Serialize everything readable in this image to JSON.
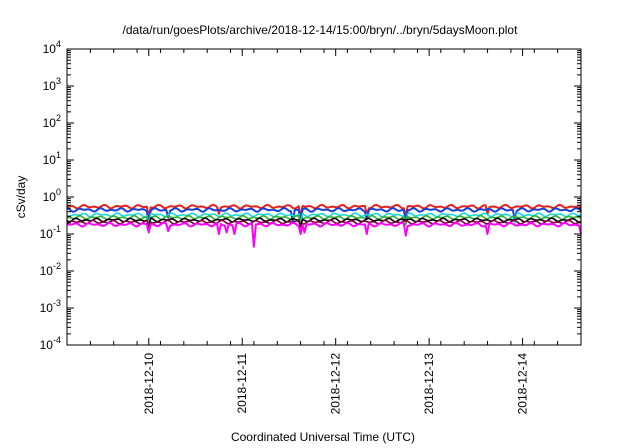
{
  "chart_data": {
    "type": "line",
    "title": "/data/run/goesPlots/archive/2018-12-14/15:00/bryn/../bryn/5daysMoon.plot",
    "xlabel": "Coordinated Universal Time (UTC)",
    "ylabel": "cSv/day",
    "yscale": "log",
    "ylim": [
      0.0001,
      10000
    ],
    "xlim": [
      "2018-12-09T03:00",
      "2018-12-14T15:00"
    ],
    "y_ticks": [
      {
        "base": "10",
        "exp": "4"
      },
      {
        "base": "10",
        "exp": "3"
      },
      {
        "base": "10",
        "exp": "2"
      },
      {
        "base": "10",
        "exp": "1"
      },
      {
        "base": "10",
        "exp": "0"
      },
      {
        "base": "10",
        "exp": "-1"
      },
      {
        "base": "10",
        "exp": "-2"
      },
      {
        "base": "10",
        "exp": "-3"
      },
      {
        "base": "10",
        "exp": "-4"
      }
    ],
    "x_ticks": [
      "2018-12-10",
      "2018-12-11",
      "2018-12-12",
      "2018-12-13",
      "2018-12-14"
    ],
    "grid": false,
    "legend": "none",
    "series": [
      {
        "color": "#e8211a",
        "baseline": 0.55,
        "dips": [
          [
            "2018-12-10T00:00",
            0.3
          ],
          [
            "2018-12-10T18:00",
            0.35
          ],
          [
            "2018-12-11T15:00",
            0.3
          ],
          [
            "2018-12-12T08:00",
            0.32
          ],
          [
            "2018-12-12T18:00",
            0.3
          ],
          [
            "2018-12-13T15:00",
            0.35
          ],
          [
            "2018-12-14T15:00",
            0.4
          ]
        ]
      },
      {
        "color": "#1a3fd9",
        "baseline": 0.45,
        "dips": [
          [
            "2018-12-10T00:00",
            0.2
          ],
          [
            "2018-12-10T05:00",
            0.28
          ],
          [
            "2018-12-11T13:00",
            0.22
          ],
          [
            "2018-12-11T15:00",
            0.2
          ],
          [
            "2018-12-12T08:00",
            0.25
          ],
          [
            "2018-12-12T18:00",
            0.22
          ],
          [
            "2018-12-13T22:00",
            0.24
          ]
        ]
      },
      {
        "color": "#18d8d8",
        "baseline": 0.33,
        "dips": [
          [
            "2018-12-10T00:00",
            0.18
          ],
          [
            "2018-12-11T15:00",
            0.18
          ],
          [
            "2018-12-12T18:00",
            0.2
          ],
          [
            "2018-12-13T22:00",
            0.2
          ]
        ]
      },
      {
        "color": "#33b033",
        "baseline": 0.28,
        "dips": [
          [
            "2018-12-10T00:00",
            0.16
          ],
          [
            "2018-12-11T15:00",
            0.17
          ],
          [
            "2018-12-12T18:00",
            0.18
          ]
        ]
      },
      {
        "color": "#000000",
        "baseline": 0.24,
        "dips": [
          [
            "2018-12-10T00:00",
            0.15
          ],
          [
            "2018-12-11T15:00",
            0.16
          ]
        ]
      },
      {
        "color": "#800040",
        "baseline": 0.21,
        "dips": [
          [
            "2018-12-10T00:00",
            0.14
          ],
          [
            "2018-12-11T15:00",
            0.15
          ]
        ]
      },
      {
        "color": "#ff00ff",
        "baseline": 0.18,
        "dips": [
          [
            "2018-12-10T00:00",
            0.11
          ],
          [
            "2018-12-10T05:00",
            0.12
          ],
          [
            "2018-12-10T18:00",
            0.1
          ],
          [
            "2018-12-10T20:00",
            0.11
          ],
          [
            "2018-12-10T22:00",
            0.1
          ],
          [
            "2018-12-11T03:00",
            0.045
          ],
          [
            "2018-12-11T15:00",
            0.1
          ],
          [
            "2018-12-11T16:00",
            0.11
          ],
          [
            "2018-12-12T08:00",
            0.1
          ],
          [
            "2018-12-12T18:00",
            0.09
          ],
          [
            "2018-12-13T15:00",
            0.1
          ],
          [
            "2018-12-14T15:00",
            0.1
          ]
        ]
      }
    ]
  }
}
